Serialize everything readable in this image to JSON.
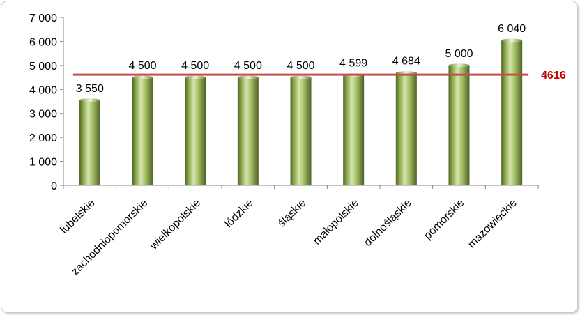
{
  "chart_data": {
    "type": "bar",
    "title": "",
    "xlabel": "",
    "ylabel": "",
    "categories": [
      "lubelskie",
      "zachodniopomorskie",
      "wielkopolskie",
      "łódzkie",
      "śląskie",
      "małopolskie",
      "dolnośląskie",
      "pomorskie",
      "mazowieckie"
    ],
    "values": [
      3550,
      4500,
      4500,
      4500,
      4500,
      4599,
      4684,
      5000,
      6040
    ],
    "data_labels": [
      "3 550",
      "4 500",
      "4 500",
      "4 500",
      "4 500",
      "4 599",
      "4 684",
      "5 000",
      "6 040"
    ],
    "ylim": [
      0,
      7000
    ],
    "yticks": [
      0,
      1000,
      2000,
      3000,
      4000,
      5000,
      6000,
      7000
    ],
    "ytick_labels": [
      "0",
      "1 000",
      "2 000",
      "3 000",
      "4 000",
      "5 000",
      "6 000",
      "7 000"
    ],
    "grid": false,
    "legend": "none",
    "bar_color": "#9bbb59",
    "average_line": {
      "value": 4616,
      "label": "4616",
      "color": "#c0504d",
      "label_color": "#c00000"
    }
  }
}
